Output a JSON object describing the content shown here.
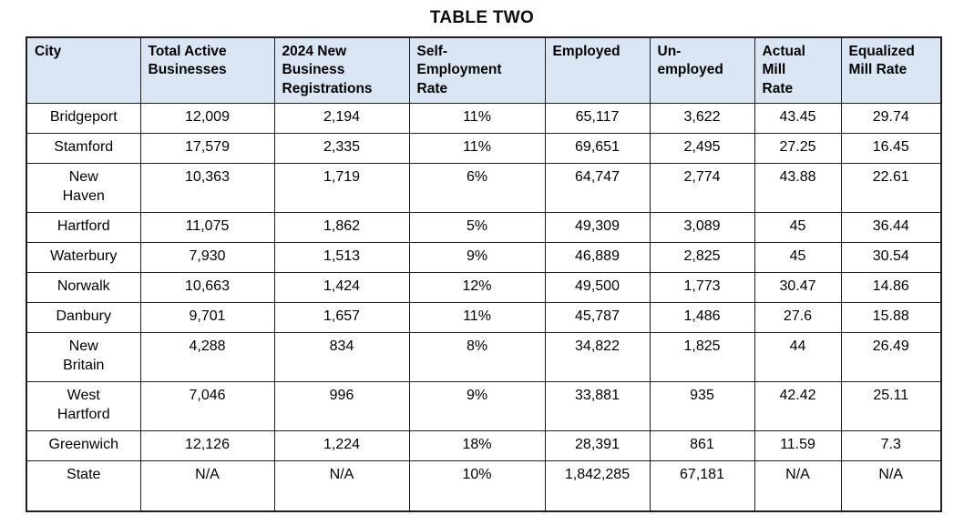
{
  "title": "TABLE TWO",
  "table": {
    "header_bg": "#dbe6f4",
    "border_color": "#1f1f1f",
    "columns": [
      "City",
      "Total Active\nBusinesses",
      "2024 New\nBusiness\nRegistrations",
      "Self-\nEmployment\nRate",
      "Employed",
      "Un-\nemployed",
      "Actual\nMill\nRate",
      "Equalized\nMill Rate"
    ],
    "rows": [
      [
        "Bridgeport",
        "12,009",
        "2,194",
        "11%",
        "65,117",
        "3,622",
        "43.45",
        "29.74"
      ],
      [
        "Stamford",
        "17,579",
        "2,335",
        "11%",
        "69,651",
        "2,495",
        "27.25",
        "16.45"
      ],
      [
        "New\nHaven",
        "10,363",
        "1,719",
        "6%",
        "64,747",
        "2,774",
        "43.88",
        "22.61"
      ],
      [
        "Hartford",
        "11,075",
        "1,862",
        "5%",
        "49,309",
        "3,089",
        "45",
        "36.44"
      ],
      [
        "Waterbury",
        "7,930",
        "1,513",
        "9%",
        "46,889",
        "2,825",
        "45",
        "30.54"
      ],
      [
        "Norwalk",
        "10,663",
        "1,424",
        "12%",
        "49,500",
        "1,773",
        "30.47",
        "14.86"
      ],
      [
        "Danbury",
        "9,701",
        "1,657",
        "11%",
        "45,787",
        "1,486",
        "27.6",
        "15.88"
      ],
      [
        "New\nBritain",
        "4,288",
        "834",
        "8%",
        "34,822",
        "1,825",
        "44",
        "26.49"
      ],
      [
        "West\nHartford",
        "7,046",
        "996",
        "9%",
        "33,881",
        "935",
        "42.42",
        "25.11"
      ],
      [
        "Greenwich",
        "12,126",
        "1,224",
        "18%",
        "28,391",
        "861",
        "11.59",
        "7.3"
      ],
      [
        "State",
        "N/A",
        "N/A",
        "10%",
        "1,842,285",
        "67,181",
        "N/A",
        "N/A"
      ]
    ]
  },
  "chart_data": {
    "type": "table",
    "title": "TABLE TWO",
    "columns": [
      "City",
      "Total Active Businesses",
      "2024 New Business Registrations",
      "Self-Employment Rate",
      "Employed",
      "Un-employed",
      "Actual Mill Rate",
      "Equalized Mill Rate"
    ],
    "rows": [
      [
        "Bridgeport",
        "12,009",
        "2,194",
        "11%",
        "65,117",
        "3,622",
        "43.45",
        "29.74"
      ],
      [
        "Stamford",
        "17,579",
        "2,335",
        "11%",
        "69,651",
        "2,495",
        "27.25",
        "16.45"
      ],
      [
        "New Haven",
        "10,363",
        "1,719",
        "6%",
        "64,747",
        "2,774",
        "43.88",
        "22.61"
      ],
      [
        "Hartford",
        "11,075",
        "1,862",
        "5%",
        "49,309",
        "3,089",
        "45",
        "36.44"
      ],
      [
        "Waterbury",
        "7,930",
        "1,513",
        "9%",
        "46,889",
        "2,825",
        "45",
        "30.54"
      ],
      [
        "Norwalk",
        "10,663",
        "1,424",
        "12%",
        "49,500",
        "1,773",
        "30.47",
        "14.86"
      ],
      [
        "Danbury",
        "9,701",
        "1,657",
        "11%",
        "45,787",
        "1,486",
        "27.6",
        "15.88"
      ],
      [
        "New Britain",
        "4,288",
        "834",
        "8%",
        "34,822",
        "1,825",
        "44",
        "26.49"
      ],
      [
        "West Hartford",
        "7,046",
        "996",
        "9%",
        "33,881",
        "935",
        "42.42",
        "25.11"
      ],
      [
        "Greenwich",
        "12,126",
        "1,224",
        "18%",
        "28,391",
        "861",
        "11.59",
        "7.3"
      ],
      [
        "State",
        "N/A",
        "N/A",
        "10%",
        "1,842,285",
        "67,181",
        "N/A",
        "N/A"
      ]
    ]
  }
}
